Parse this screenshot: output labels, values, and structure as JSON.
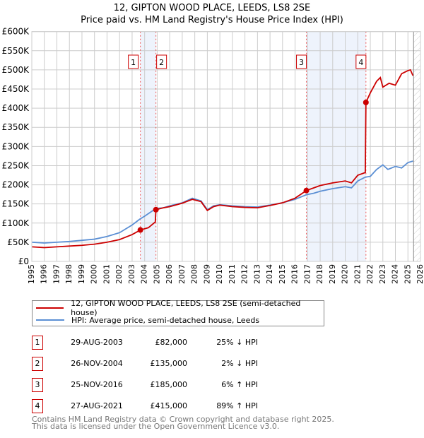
{
  "title": "12, GIPTON WOOD PLACE, LEEDS, LS8 2SE",
  "subtitle": "Price paid vs. HM Land Registry's House Price Index (HPI)",
  "chart_data": {
    "type": "line",
    "title": "12, GIPTON WOOD PLACE, LEEDS, LS8 2SE",
    "subtitle": "Price paid vs. HM Land Registry's House Price Index (HPI)",
    "xlim": [
      1995,
      2026
    ],
    "ylim": [
      0,
      600000
    ],
    "xticks": [
      "1995",
      "1996",
      "1997",
      "1998",
      "1999",
      "2000",
      "2001",
      "2002",
      "2003",
      "2004",
      "2005",
      "2006",
      "2007",
      "2008",
      "2009",
      "2010",
      "2011",
      "2012",
      "2013",
      "2014",
      "2015",
      "2016",
      "2017",
      "2018",
      "2019",
      "2020",
      "2021",
      "2022",
      "2023",
      "2024",
      "2025",
      "2026"
    ],
    "yticks": [
      {
        "v": 0,
        "l": "£0"
      },
      {
        "v": 50000,
        "l": "£50K"
      },
      {
        "v": 100000,
        "l": "£100K"
      },
      {
        "v": 150000,
        "l": "£150K"
      },
      {
        "v": 200000,
        "l": "£200K"
      },
      {
        "v": 250000,
        "l": "£250K"
      },
      {
        "v": 300000,
        "l": "£300K"
      },
      {
        "v": 350000,
        "l": "£350K"
      },
      {
        "v": 400000,
        "l": "£400K"
      },
      {
        "v": 450000,
        "l": "£450K"
      },
      {
        "v": 500000,
        "l": "£500K"
      },
      {
        "v": 550000,
        "l": "£550K"
      },
      {
        "v": 600000,
        "l": "£600K"
      }
    ],
    "grid": true,
    "series": [
      {
        "name": "12, GIPTON WOOD PLACE, LEEDS, LS8 2SE (semi-detached house)",
        "color": "#cc0000",
        "x": [
          1995,
          1996,
          1997,
          1998,
          1999,
          2000,
          2001,
          2002,
          2003,
          2003.66,
          2004.3,
          2004.85,
          2004.9,
          2005.5,
          2006,
          2007,
          2007.8,
          2008.5,
          2009,
          2009.5,
          2010,
          2011,
          2012,
          2013,
          2014,
          2015,
          2016,
          2016.9,
          2017.5,
          2018,
          2019,
          2020,
          2020.5,
          2021,
          2021.6,
          2021.65,
          2022,
          2022.5,
          2022.8,
          2023,
          2023.5,
          2024,
          2024.5,
          2025,
          2025.2,
          2025.4
        ],
        "y": [
          38000,
          36000,
          38000,
          40000,
          42000,
          45000,
          50000,
          57000,
          70000,
          82000,
          88000,
          103000,
          135000,
          140000,
          143000,
          152000,
          162000,
          156000,
          133000,
          143000,
          147000,
          143000,
          141000,
          140000,
          146000,
          153000,
          165000,
          185000,
          192000,
          198000,
          205000,
          210000,
          205000,
          225000,
          232000,
          415000,
          440000,
          470000,
          480000,
          455000,
          465000,
          460000,
          490000,
          498000,
          500000,
          485000
        ]
      },
      {
        "name": "HPI: Average price, semi-detached house, Leeds",
        "color": "#5b8fd4",
        "x": [
          1995,
          1996,
          1997,
          1998,
          1999,
          2000,
          2001,
          2002,
          2003,
          2003.6,
          2004,
          2004.9,
          2005.5,
          2006,
          2007,
          2007.8,
          2008.5,
          2009,
          2009.5,
          2010,
          2011,
          2012,
          2013,
          2014,
          2015,
          2016,
          2016.9,
          2017.5,
          2018,
          2019,
          2020,
          2020.5,
          2021,
          2021.6,
          2022,
          2022.5,
          2023,
          2023.4,
          2024,
          2024.5,
          2025,
          2025.4
        ],
        "y": [
          50000,
          48000,
          50000,
          52000,
          55000,
          58000,
          65000,
          75000,
          95000,
          110000,
          118000,
          138000,
          140000,
          145000,
          153000,
          165000,
          158000,
          135000,
          145000,
          148000,
          145000,
          143000,
          142000,
          147000,
          153000,
          162000,
          174000,
          178000,
          183000,
          190000,
          195000,
          192000,
          210000,
          220000,
          222000,
          240000,
          252000,
          240000,
          248000,
          244000,
          258000,
          262000
        ]
      }
    ],
    "sales": [
      {
        "n": "1",
        "x": 2003.66,
        "y": 82000
      },
      {
        "n": "2",
        "x": 2004.9,
        "y": 135000
      },
      {
        "n": "3",
        "x": 2016.9,
        "y": 185000
      },
      {
        "n": "4",
        "x": 2021.65,
        "y": 415000
      }
    ],
    "shaded": [
      [
        2003.66,
        2004.9
      ],
      [
        2016.9,
        2021.65
      ]
    ],
    "hatched_from": 2025.45
  },
  "legend": {
    "property": "12, GIPTON WOOD PLACE, LEEDS, LS8 2SE (semi-detached house)",
    "hpi": "HPI: Average price, semi-detached house, Leeds"
  },
  "transactions": [
    {
      "n": "1",
      "date": "29-AUG-2003",
      "price": "£82,000",
      "hpi": "25% ↓ HPI"
    },
    {
      "n": "2",
      "date": "26-NOV-2004",
      "price": "£135,000",
      "hpi": "2% ↓ HPI"
    },
    {
      "n": "3",
      "date": "25-NOV-2016",
      "price": "£185,000",
      "hpi": "6% ↑ HPI"
    },
    {
      "n": "4",
      "date": "27-AUG-2021",
      "price": "£415,000",
      "hpi": "89% ↑ HPI"
    }
  ],
  "footer": [
    "Contains HM Land Registry data © Crown copyright and database right 2025.",
    "This data is licensed under the Open Government Licence v3.0."
  ]
}
